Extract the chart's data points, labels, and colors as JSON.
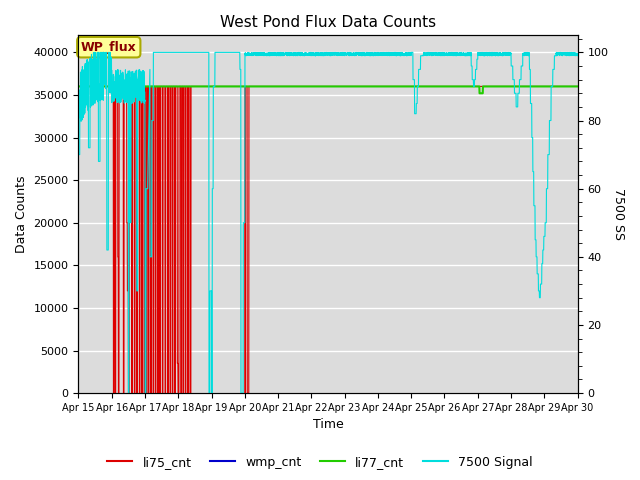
{
  "title": "West Pond Flux Data Counts",
  "ylabel_left": "Data Counts",
  "ylabel_right": "7500 SS",
  "xlabel": "Time",
  "ylim_left": [
    0,
    42000
  ],
  "ylim_right": [
    0,
    105
  ],
  "background_color": "#dcdcdc",
  "annotation_text": "WP_flux",
  "annotation_color": "#880000",
  "annotation_bg": "#ffff99",
  "annotation_border": "#aaaa00",
  "tick_labels": [
    "Apr 15",
    "Apr 16",
    "Apr 17",
    "Apr 18",
    "Apr 19",
    "Apr 20",
    "Apr 21",
    "Apr 22",
    "Apr 23",
    "Apr 24",
    "Apr 25",
    "Apr 26",
    "Apr 27",
    "Apr 28",
    "Apr 29",
    "Apr 30"
  ],
  "colors": {
    "li75_cnt": "#dd0000",
    "wmp_cnt": "#0000cc",
    "li77_cnt": "#22cc00",
    "signal_7500": "#00dddd"
  },
  "yticks_left": [
    0,
    5000,
    10000,
    15000,
    20000,
    25000,
    30000,
    35000,
    40000
  ],
  "yticks_right": [
    0,
    20,
    40,
    60,
    80,
    100
  ],
  "grid_color": "#ffffff",
  "figsize": [
    6.4,
    4.8
  ],
  "dpi": 100
}
